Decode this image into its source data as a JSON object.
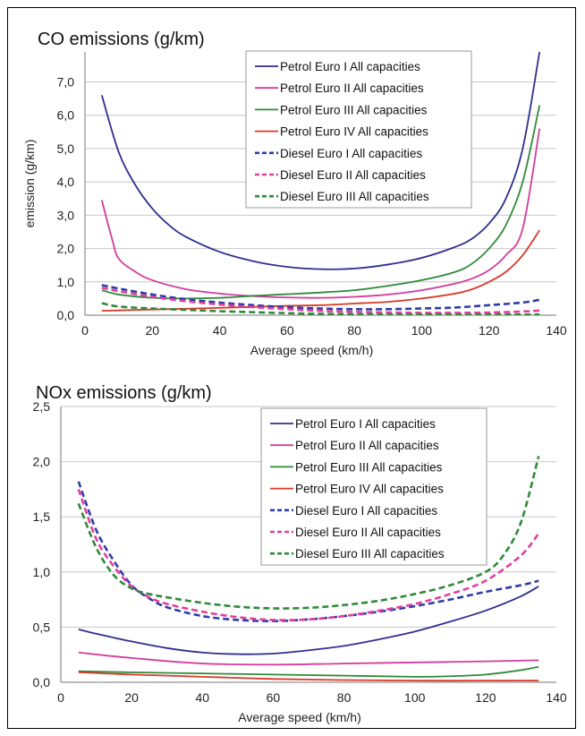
{
  "chart_data": [
    {
      "type": "line",
      "title": "CO emissions (g/km)",
      "xlabel": "Average speed (km/h)",
      "ylabel": "emission (g/km)",
      "xlim": [
        0,
        140
      ],
      "ylim": [
        0,
        7.9
      ],
      "x_ticks": [
        "0",
        "20",
        "40",
        "60",
        "80",
        "100",
        "120",
        "140"
      ],
      "y_ticks": [
        "0,0",
        "1,0",
        "2,0",
        "3,0",
        "4,0",
        "5,0",
        "6,0",
        "7,0"
      ],
      "grid": "horizontal",
      "legend_position": "top-center",
      "series": [
        {
          "name": "Petrol Euro I All capacities",
          "color": "#2e2f8f",
          "dash": "solid",
          "points": [
            [
              5,
              6.6
            ],
            [
              10,
              4.9
            ],
            [
              15,
              3.9
            ],
            [
              20,
              3.2
            ],
            [
              25,
              2.7
            ],
            [
              30,
              2.35
            ],
            [
              40,
              1.9
            ],
            [
              50,
              1.62
            ],
            [
              60,
              1.45
            ],
            [
              70,
              1.38
            ],
            [
              80,
              1.4
            ],
            [
              90,
              1.52
            ],
            [
              100,
              1.72
            ],
            [
              110,
              2.05
            ],
            [
              115,
              2.3
            ],
            [
              120,
              2.75
            ],
            [
              125,
              3.5
            ],
            [
              130,
              5.0
            ],
            [
              135,
              7.9
            ]
          ]
        },
        {
          "name": "Petrol Euro II All capacities",
          "color": "#d43c9c",
          "dash": "solid",
          "points": [
            [
              5,
              3.45
            ],
            [
              8,
              2.3
            ],
            [
              10,
              1.7
            ],
            [
              15,
              1.3
            ],
            [
              20,
              1.05
            ],
            [
              30,
              0.78
            ],
            [
              40,
              0.65
            ],
            [
              50,
              0.57
            ],
            [
              60,
              0.53
            ],
            [
              70,
              0.52
            ],
            [
              80,
              0.55
            ],
            [
              90,
              0.62
            ],
            [
              100,
              0.75
            ],
            [
              110,
              0.95
            ],
            [
              115,
              1.1
            ],
            [
              120,
              1.35
            ],
            [
              125,
              1.8
            ],
            [
              130,
              2.6
            ],
            [
              135,
              5.6
            ]
          ]
        },
        {
          "name": "Petrol Euro III All capacities",
          "color": "#2f8a3a",
          "dash": "solid",
          "points": [
            [
              5,
              0.75
            ],
            [
              10,
              0.62
            ],
            [
              20,
              0.52
            ],
            [
              30,
              0.5
            ],
            [
              40,
              0.52
            ],
            [
              50,
              0.58
            ],
            [
              60,
              0.63
            ],
            [
              70,
              0.68
            ],
            [
              80,
              0.75
            ],
            [
              90,
              0.88
            ],
            [
              100,
              1.05
            ],
            [
              110,
              1.3
            ],
            [
              115,
              1.55
            ],
            [
              120,
              2.0
            ],
            [
              125,
              2.7
            ],
            [
              130,
              4.0
            ],
            [
              135,
              6.3
            ]
          ]
        },
        {
          "name": "Petrol Euro IV All capacities",
          "color": "#d83a2a",
          "dash": "solid",
          "points": [
            [
              5,
              0.13
            ],
            [
              20,
              0.17
            ],
            [
              40,
              0.22
            ],
            [
              60,
              0.28
            ],
            [
              70,
              0.3
            ],
            [
              80,
              0.35
            ],
            [
              90,
              0.4
            ],
            [
              100,
              0.5
            ],
            [
              110,
              0.65
            ],
            [
              115,
              0.78
            ],
            [
              120,
              1.0
            ],
            [
              125,
              1.3
            ],
            [
              130,
              1.8
            ],
            [
              135,
              2.55
            ]
          ]
        },
        {
          "name": "Diesel Euro I All capacities",
          "color": "#2e3ca8",
          "dash": "dashed",
          "points": [
            [
              5,
              0.9
            ],
            [
              10,
              0.8
            ],
            [
              20,
              0.62
            ],
            [
              30,
              0.48
            ],
            [
              40,
              0.38
            ],
            [
              50,
              0.3
            ],
            [
              60,
              0.24
            ],
            [
              70,
              0.2
            ],
            [
              80,
              0.18
            ],
            [
              90,
              0.18
            ],
            [
              100,
              0.2
            ],
            [
              110,
              0.23
            ],
            [
              120,
              0.3
            ],
            [
              130,
              0.38
            ],
            [
              135,
              0.46
            ]
          ]
        },
        {
          "name": "Diesel Euro II All capacities",
          "color": "#e0409c",
          "dash": "dashed",
          "points": [
            [
              5,
              0.82
            ],
            [
              10,
              0.72
            ],
            [
              20,
              0.55
            ],
            [
              30,
              0.42
            ],
            [
              40,
              0.32
            ],
            [
              50,
              0.24
            ],
            [
              60,
              0.18
            ],
            [
              70,
              0.13
            ],
            [
              80,
              0.1
            ],
            [
              90,
              0.08
            ],
            [
              100,
              0.07
            ],
            [
              110,
              0.07
            ],
            [
              120,
              0.08
            ],
            [
              130,
              0.11
            ],
            [
              135,
              0.14
            ]
          ]
        },
        {
          "name": "Diesel Euro III All capacities",
          "color": "#2f8a3a",
          "dash": "dashed",
          "points": [
            [
              5,
              0.36
            ],
            [
              10,
              0.26
            ],
            [
              20,
              0.2
            ],
            [
              30,
              0.16
            ],
            [
              40,
              0.12
            ],
            [
              50,
              0.09
            ],
            [
              60,
              0.06
            ],
            [
              70,
              0.04
            ],
            [
              80,
              0.03
            ],
            [
              90,
              0.02
            ],
            [
              100,
              0.02
            ],
            [
              110,
              0.02
            ],
            [
              120,
              0.02
            ],
            [
              130,
              0.02
            ],
            [
              135,
              0.02
            ]
          ]
        }
      ]
    },
    {
      "type": "line",
      "title": "NOx emissions (g/km)",
      "xlabel": "Average speed (km/h)",
      "ylabel": "",
      "xlim": [
        0,
        140
      ],
      "ylim": [
        0,
        2.5
      ],
      "x_ticks": [
        "0",
        "20",
        "40",
        "60",
        "80",
        "100",
        "120",
        "140"
      ],
      "y_ticks": [
        "0,0",
        "0,5",
        "1,0",
        "1,5",
        "2,0",
        "2,5"
      ],
      "grid": "horizontal",
      "legend_position": "top-right",
      "series": [
        {
          "name": "Petrol Euro I All capacities",
          "color": "#2e2f8f",
          "dash": "solid",
          "points": [
            [
              5,
              0.48
            ],
            [
              10,
              0.44
            ],
            [
              20,
              0.37
            ],
            [
              30,
              0.31
            ],
            [
              40,
              0.27
            ],
            [
              50,
              0.255
            ],
            [
              60,
              0.26
            ],
            [
              70,
              0.29
            ],
            [
              80,
              0.33
            ],
            [
              90,
              0.39
            ],
            [
              100,
              0.46
            ],
            [
              110,
              0.55
            ],
            [
              120,
              0.65
            ],
            [
              130,
              0.78
            ],
            [
              135,
              0.87
            ]
          ]
        },
        {
          "name": "Petrol Euro II All capacities",
          "color": "#d43c9c",
          "dash": "solid",
          "points": [
            [
              5,
              0.27
            ],
            [
              20,
              0.22
            ],
            [
              40,
              0.17
            ],
            [
              60,
              0.16
            ],
            [
              80,
              0.17
            ],
            [
              100,
              0.18
            ],
            [
              120,
              0.19
            ],
            [
              135,
              0.2
            ]
          ]
        },
        {
          "name": "Petrol Euro III All capacities",
          "color": "#2f8a3a",
          "dash": "solid",
          "points": [
            [
              5,
              0.1
            ],
            [
              20,
              0.09
            ],
            [
              40,
              0.08
            ],
            [
              60,
              0.07
            ],
            [
              80,
              0.06
            ],
            [
              100,
              0.05
            ],
            [
              110,
              0.055
            ],
            [
              120,
              0.07
            ],
            [
              130,
              0.11
            ],
            [
              135,
              0.14
            ]
          ]
        },
        {
          "name": "Petrol Euro IV All capacities",
          "color": "#d83a2a",
          "dash": "solid",
          "points": [
            [
              5,
              0.09
            ],
            [
              20,
              0.07
            ],
            [
              40,
              0.05
            ],
            [
              60,
              0.03
            ],
            [
              80,
              0.02
            ],
            [
              100,
              0.015
            ],
            [
              120,
              0.015
            ],
            [
              135,
              0.015
            ]
          ]
        },
        {
          "name": "Diesel Euro I All capacities",
          "color": "#2e3ca8",
          "dash": "dashed",
          "points": [
            [
              5,
              1.82
            ],
            [
              10,
              1.38
            ],
            [
              15,
              1.1
            ],
            [
              20,
              0.88
            ],
            [
              25,
              0.76
            ],
            [
              30,
              0.68
            ],
            [
              40,
              0.6
            ],
            [
              50,
              0.565
            ],
            [
              60,
              0.555
            ],
            [
              70,
              0.57
            ],
            [
              80,
              0.6
            ],
            [
              90,
              0.64
            ],
            [
              100,
              0.69
            ],
            [
              110,
              0.75
            ],
            [
              120,
              0.82
            ],
            [
              130,
              0.88
            ],
            [
              135,
              0.92
            ]
          ]
        },
        {
          "name": "Diesel Euro II All capacities",
          "color": "#e0409c",
          "dash": "dashed",
          "points": [
            [
              5,
              1.75
            ],
            [
              10,
              1.3
            ],
            [
              15,
              1.05
            ],
            [
              20,
              0.87
            ],
            [
              25,
              0.77
            ],
            [
              30,
              0.71
            ],
            [
              40,
              0.64
            ],
            [
              50,
              0.59
            ],
            [
              60,
              0.565
            ],
            [
              70,
              0.57
            ],
            [
              80,
              0.6
            ],
            [
              90,
              0.65
            ],
            [
              100,
              0.71
            ],
            [
              110,
              0.8
            ],
            [
              120,
              0.92
            ],
            [
              130,
              1.15
            ],
            [
              135,
              1.35
            ]
          ]
        },
        {
          "name": "Diesel Euro III All capacities",
          "color": "#2f8a3a",
          "dash": "dashed",
          "points": [
            [
              5,
              1.62
            ],
            [
              10,
              1.22
            ],
            [
              15,
              0.97
            ],
            [
              20,
              0.85
            ],
            [
              25,
              0.8
            ],
            [
              30,
              0.77
            ],
            [
              40,
              0.72
            ],
            [
              50,
              0.685
            ],
            [
              60,
              0.67
            ],
            [
              70,
              0.675
            ],
            [
              80,
              0.7
            ],
            [
              90,
              0.74
            ],
            [
              100,
              0.8
            ],
            [
              110,
              0.88
            ],
            [
              120,
              1.0
            ],
            [
              125,
              1.15
            ],
            [
              130,
              1.45
            ],
            [
              135,
              2.05
            ]
          ]
        }
      ]
    }
  ]
}
